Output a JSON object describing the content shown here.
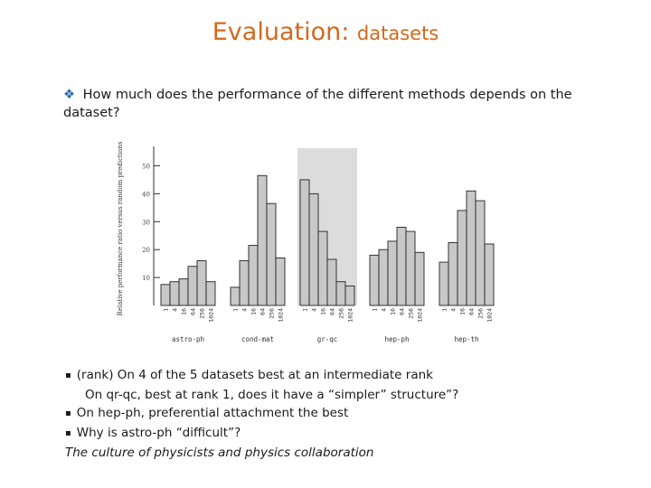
{
  "slide": {
    "title_main": "Evaluation: ",
    "title_sub": "datasets",
    "question_marker": "❖",
    "question": "How much does the performance of the different methods depends on the dataset?",
    "bullets": [
      {
        "marker": "▪",
        "text": "(rank) On 4 of the 5 datasets best at an intermediate rank",
        "indent": false,
        "italic": false
      },
      {
        "marker": "",
        "text": "On qr-qc, best at rank 1, does it have a “simpler” structure”?",
        "indent": true,
        "italic": false
      },
      {
        "marker": "▪",
        "text": "On hep-ph, preferential attachment the best",
        "indent": false,
        "italic": false
      },
      {
        "marker": "▪",
        "text": "Why is astro-ph “difficult”?",
        "indent": false,
        "italic": false
      },
      {
        "marker": "",
        "text": "The culture of physicists and physics collaboration",
        "indent": false,
        "italic": true
      }
    ]
  },
  "chart_data": {
    "type": "bar",
    "ylabel": "Relative performance ratio versus random predictions",
    "ylim": [
      0,
      55
    ],
    "yticks": [
      10,
      20,
      30,
      40,
      50
    ],
    "rank_labels": [
      "1",
      "4",
      "16",
      "64",
      "256",
      "1024"
    ],
    "groups": [
      {
        "name": "astro-ph",
        "values": [
          7.5,
          8.5,
          9.5,
          14,
          16,
          8.5
        ],
        "highlight": false
      },
      {
        "name": "cond-mat",
        "values": [
          6.5,
          16,
          21.5,
          46.5,
          36.5,
          17
        ],
        "highlight": false
      },
      {
        "name": "gr-qc",
        "values": [
          45,
          40,
          26.5,
          16.5,
          8.5,
          7
        ],
        "highlight": true
      },
      {
        "name": "hep-ph",
        "values": [
          18,
          20,
          23,
          28,
          26.5,
          19
        ],
        "highlight": false
      },
      {
        "name": "hep-th",
        "values": [
          15.5,
          22.5,
          34,
          41,
          37.5,
          22
        ],
        "highlight": false
      }
    ],
    "grid": false,
    "colors": {
      "bar": "#c8c8c8",
      "bar_stroke": "#222222",
      "highlight_band": "#dcdcdc",
      "axis": "#333333"
    }
  }
}
